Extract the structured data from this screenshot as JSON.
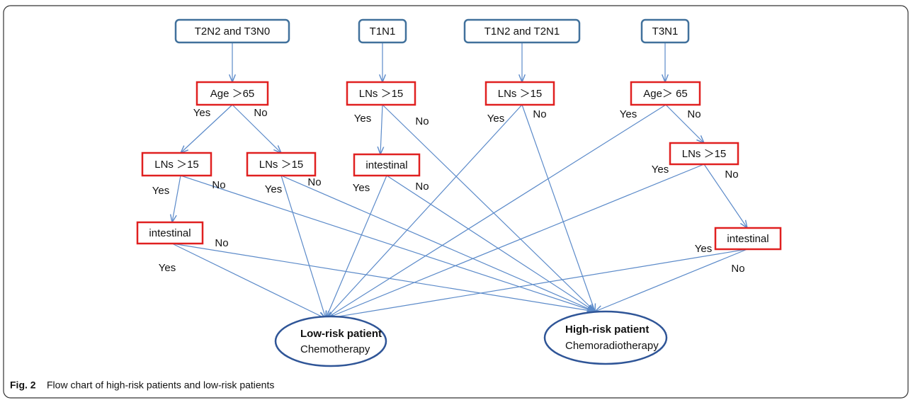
{
  "nodes": [
    {
      "label": "T2N2 and T3N0"
    },
    {
      "label": "T1N1"
    },
    {
      "label": "T1N2 and T2N1"
    },
    {
      "label": "T3N1"
    },
    {
      "label": "Age ＞65"
    },
    {
      "label": "LNs ＞15"
    },
    {
      "label": "LNs ＞15"
    },
    {
      "label": "Age＞ 65"
    },
    {
      "label": "LNs ＞15"
    },
    {
      "label": "LNs ＞15"
    },
    {
      "label": "intestinal"
    },
    {
      "label": "LNs ＞15"
    },
    {
      "label": "intestinal"
    },
    {
      "label": "intestinal"
    }
  ],
  "outcomes": [
    {
      "title": "Low-risk patient",
      "treatment": "Chemotherapy"
    },
    {
      "title": "High-risk patient",
      "treatment": "Chemoradiotherapy"
    }
  ],
  "edge_labels": [
    "Yes",
    "No",
    "Yes",
    "No",
    "Yes",
    "No",
    "Yes",
    "No",
    "Yes",
    "No",
    "Yes",
    "No",
    "Yes",
    "No",
    "Yes",
    "No",
    "No",
    "Yes",
    "Yes",
    "No"
  ],
  "caption": {
    "label": "Fig. 2",
    "text": "Flow chart of high-risk patients and low-risk patients"
  }
}
